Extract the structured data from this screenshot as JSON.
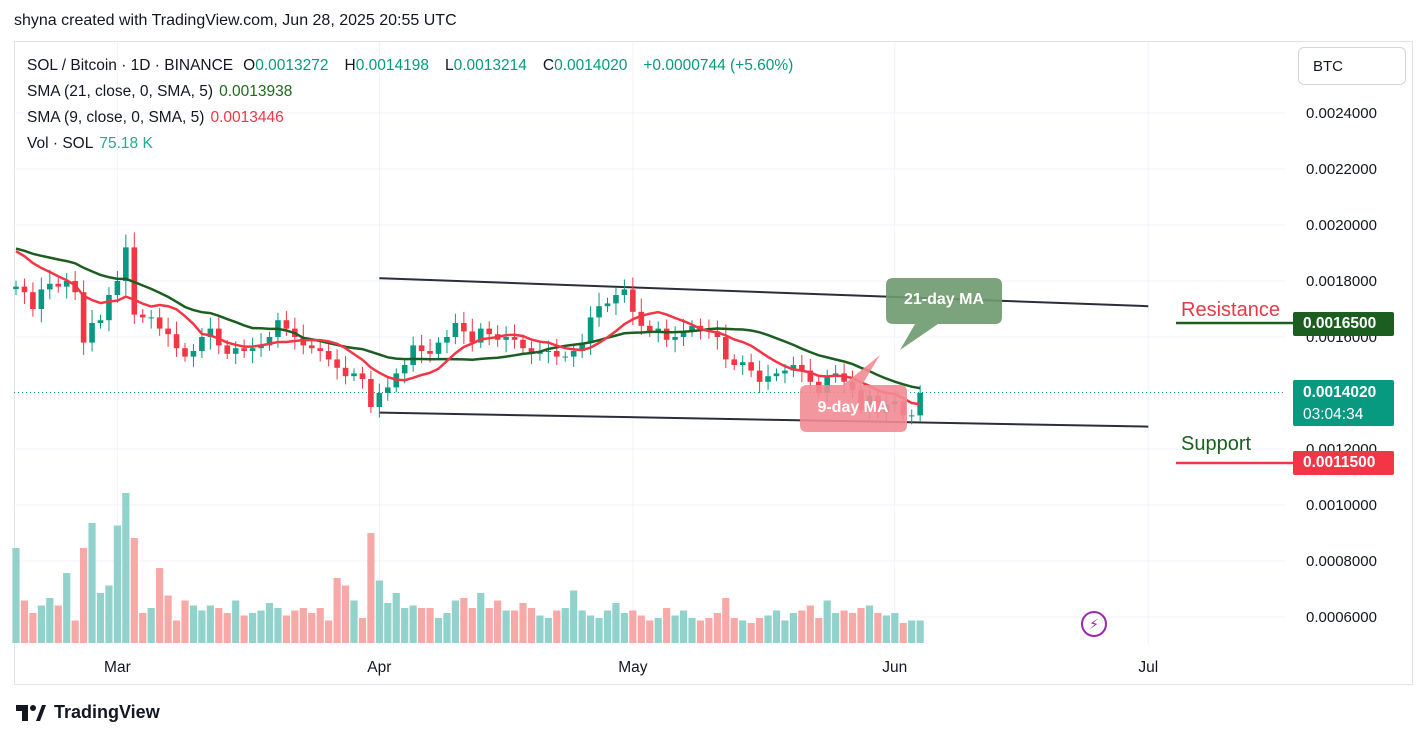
{
  "header": {
    "attribution": "shyna created with TradingView.com, Jun 28, 2025 20:55 UTC"
  },
  "legend": {
    "symbol": "SOL / Bitcoin · 1D · BINANCE",
    "o_label": "O",
    "o_value": "0.0013272",
    "h_label": "H",
    "h_value": "0.0014198",
    "l_label": "L",
    "l_value": "0.0013214",
    "c_label": "C",
    "c_value": "0.0014020",
    "change": "+0.0000744 (+5.60%)",
    "sma21_label": "SMA (21, close, 0, SMA, 5)",
    "sma21_value": "0.0013938",
    "sma9_label": "SMA (9, close, 0, SMA, 5)",
    "sma9_value": "0.0013446",
    "vol_label": "Vol · SOL",
    "vol_value": "75.18 K"
  },
  "currency_button": "BTC",
  "price_tags": {
    "resistance": "0.0016500",
    "current": "0.0014020",
    "countdown": "03:04:34",
    "support": "0.0011500"
  },
  "labels": {
    "resistance": "Resistance",
    "support": "Support",
    "ma21_callout": "21-day MA",
    "ma9_callout": "9-day MA"
  },
  "footer": {
    "brand": "TradingView"
  },
  "colors": {
    "up": "#089981",
    "down": "#f23645",
    "sma21": "#1b5e20",
    "sma9": "#f23645",
    "vol_up": "#92d2cc",
    "vol_down": "#f7a9a7",
    "channel": "#2a2e39"
  },
  "chart_data": {
    "type": "candlestick",
    "y_axis": {
      "ticks": [
        "0.0024000",
        "0.0022000",
        "0.0020000",
        "0.0018000",
        "0.0016000",
        "0.0012000",
        "0.0010000",
        "0.0008000",
        "0.0006000"
      ],
      "range": [
        0.00054,
        0.00259
      ]
    },
    "x_axis": {
      "ticks": [
        "Mar",
        "Apr",
        "May",
        "Jun",
        "Jul"
      ]
    },
    "first_date": "2025-02-17",
    "closes": [
      0.00178,
      0.00176,
      0.0017,
      0.00177,
      0.00179,
      0.00178,
      0.0018,
      0.00176,
      0.00158,
      0.00165,
      0.00166,
      0.00175,
      0.0018,
      0.00192,
      0.00168,
      0.00167,
      0.00167,
      0.00163,
      0.00161,
      0.00156,
      0.00153,
      0.00155,
      0.0016,
      0.00163,
      0.00157,
      0.00154,
      0.00156,
      0.00155,
      0.00156,
      0.00157,
      0.0016,
      0.00166,
      0.00163,
      0.0016,
      0.00157,
      0.00156,
      0.00155,
      0.00152,
      0.00149,
      0.00146,
      0.00147,
      0.00145,
      0.00135,
      0.0014,
      0.00142,
      0.00147,
      0.0015,
      0.00157,
      0.00155,
      0.00154,
      0.00158,
      0.0016,
      0.00165,
      0.00162,
      0.00158,
      0.00163,
      0.00161,
      0.00159,
      0.0016,
      0.00159,
      0.00156,
      0.00154,
      0.00155,
      0.00155,
      0.00153,
      0.00153,
      0.00155,
      0.00158,
      0.00167,
      0.00171,
      0.00172,
      0.00175,
      0.00177,
      0.00169,
      0.00164,
      0.00162,
      0.00163,
      0.00159,
      0.0016,
      0.00162,
      0.00164,
      0.00163,
      0.00162,
      0.0016,
      0.00152,
      0.0015,
      0.00151,
      0.00148,
      0.00144,
      0.00146,
      0.00147,
      0.00148,
      0.0015,
      0.00148,
      0.00144,
      0.0014,
      0.00146,
      0.00147,
      0.00144,
      0.00141,
      0.00134,
      0.00139,
      0.00133,
      0.00136,
      0.00137,
      0.00132,
      0.00132,
      0.0014
    ],
    "volumes": [
      38,
      17,
      12,
      15,
      18,
      15,
      28,
      9,
      38,
      48,
      20,
      23,
      47,
      60,
      42,
      12,
      14,
      30,
      19,
      9,
      17,
      15,
      13,
      15,
      14,
      12,
      17,
      11,
      12,
      13,
      16,
      14,
      11,
      13,
      14,
      12,
      14,
      9,
      26,
      23,
      17,
      10,
      44,
      25,
      16,
      20,
      14,
      15,
      14,
      14,
      10,
      12,
      17,
      18,
      14,
      20,
      14,
      17,
      13,
      13,
      16,
      14,
      11,
      10,
      13,
      14,
      21,
      13,
      11,
      10,
      13,
      16,
      12,
      13,
      11,
      9,
      10,
      14,
      11,
      13,
      10,
      9,
      10,
      12,
      18,
      10,
      9,
      8,
      10,
      11,
      13,
      9,
      12,
      13,
      15,
      10,
      17,
      12,
      13,
      12,
      14,
      15,
      12,
      11,
      12,
      8,
      9,
      9
    ],
    "series": [
      {
        "name": "SMA (21, close, 0, SMA, 5)",
        "last": 0.0013938
      },
      {
        "name": "SMA (9, close, 0, SMA, 5)",
        "last": 0.0013446
      }
    ],
    "channel": {
      "upper": [
        [
          "2025-04-01",
          0.00181
        ],
        [
          "2025-07-01",
          0.00171
        ]
      ],
      "lower": [
        [
          "2025-04-01",
          0.00133
        ],
        [
          "2025-07-01",
          0.00128
        ]
      ]
    },
    "horizontal_levels": {
      "resistance": 0.00165,
      "support": 0.00115
    },
    "current_price": 0.001402
  }
}
